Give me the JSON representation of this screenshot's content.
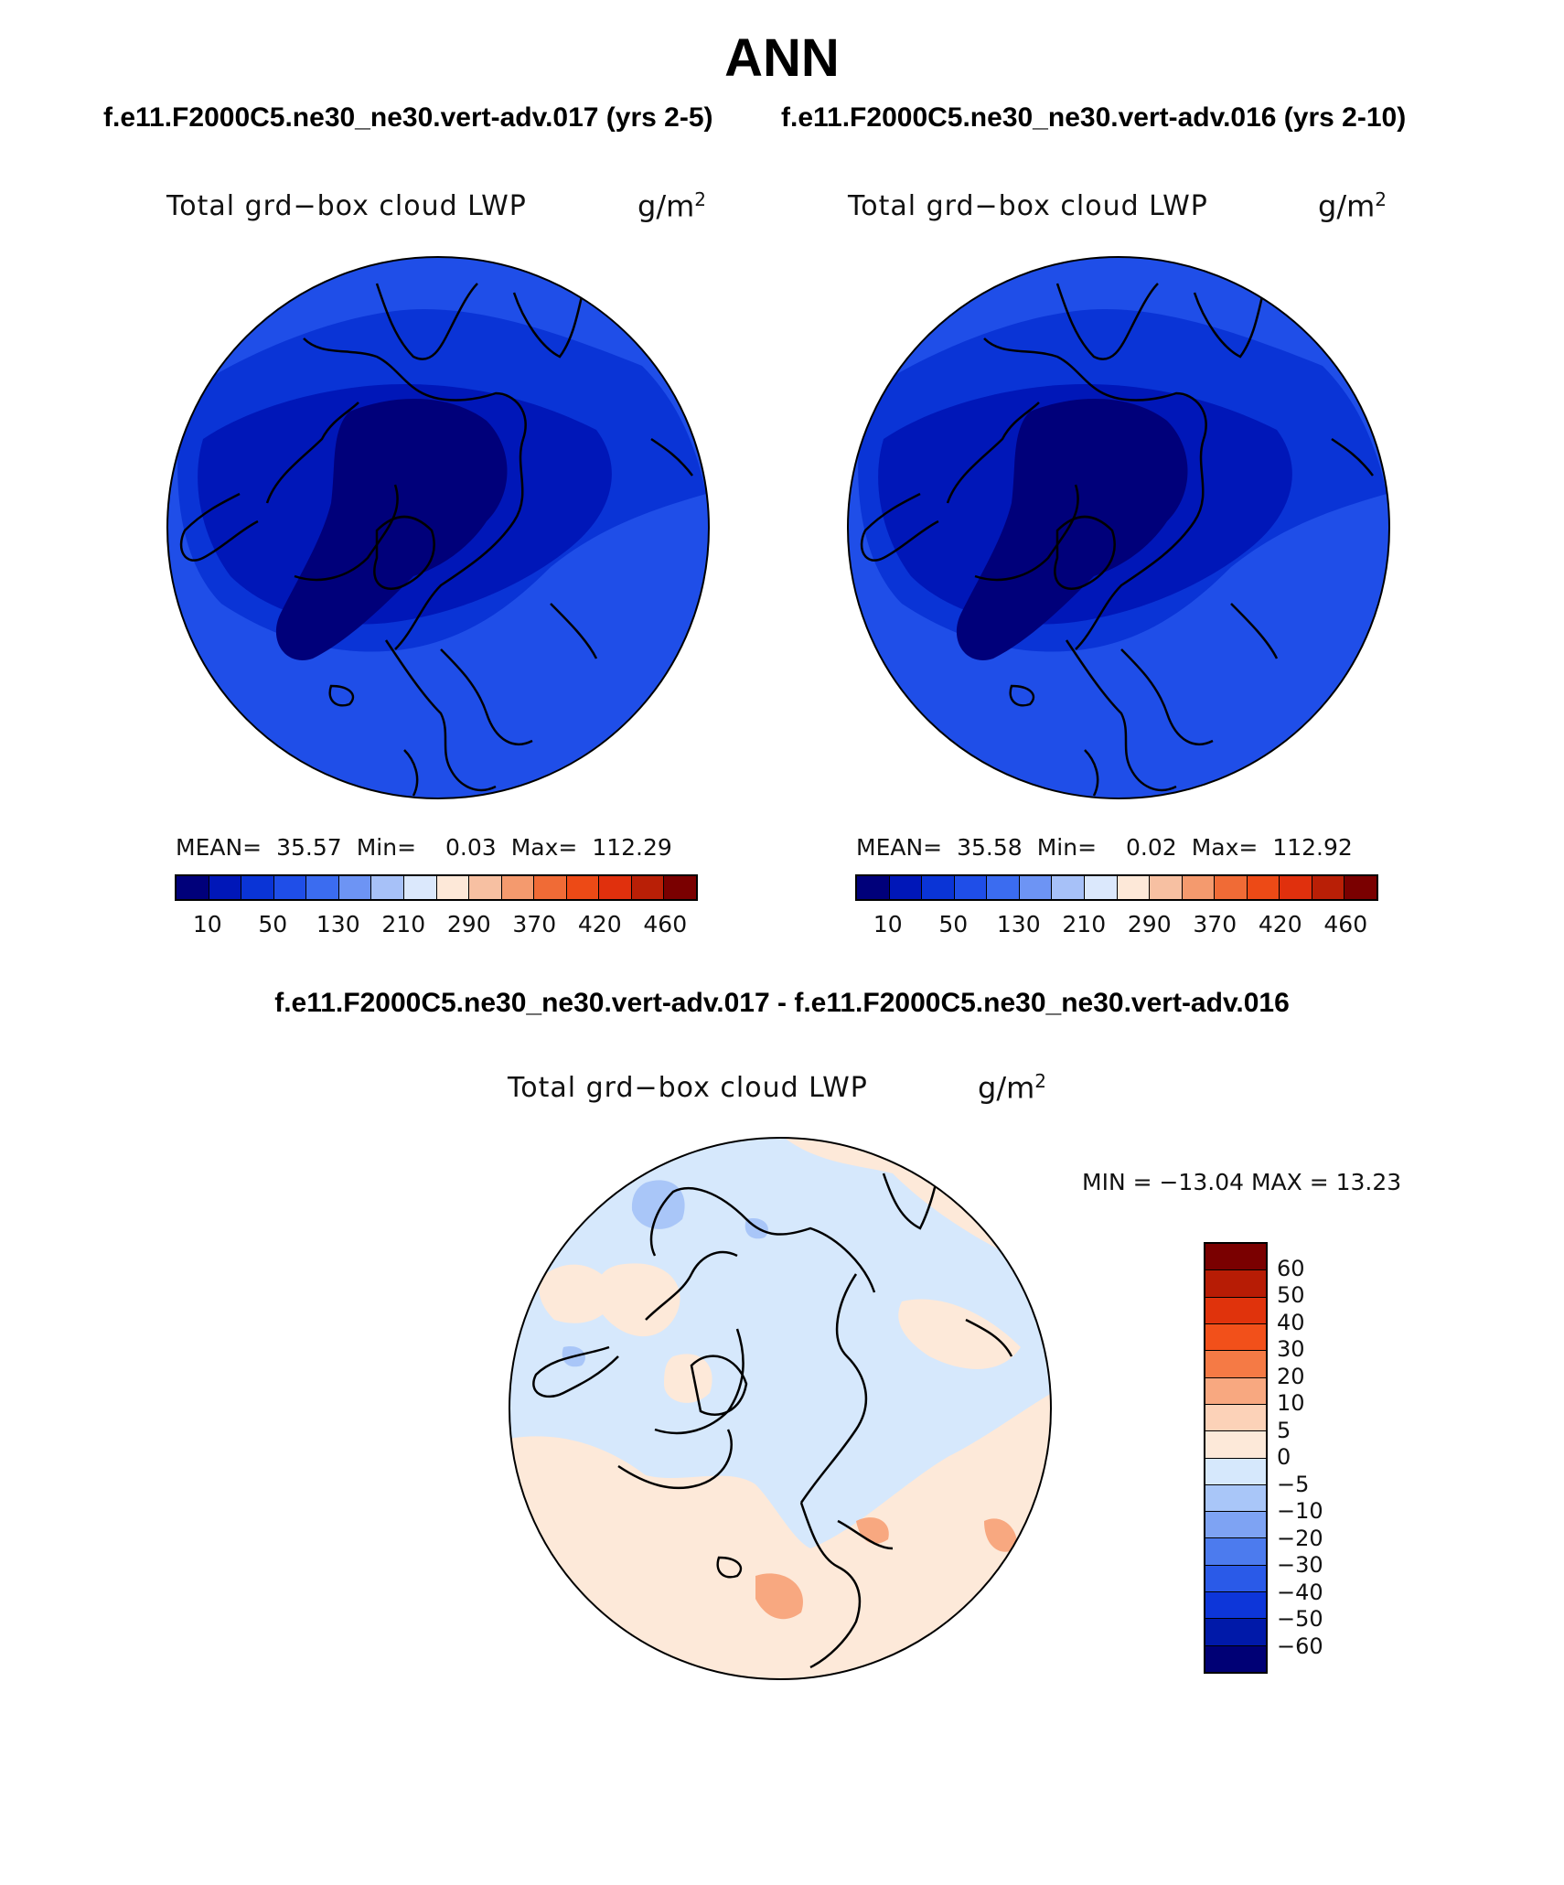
{
  "page": {
    "title": "ANN",
    "left_case_title": "f.e11.F2000C5.ne30_ne30.vert-adv.017 (yrs 2-5)",
    "right_case_title": "f.e11.F2000C5.ne30_ne30.vert-adv.016 (yrs 2-10)",
    "diff_title": "f.e11.F2000C5.ne30_ne30.vert-adv.017 - f.e11.F2000C5.ne30_ne30.vert-adv.016"
  },
  "panels": [
    {
      "variable": "Total grd−box cloud LWP",
      "units_base": "g/m",
      "units_exp": "2",
      "mean_label": "MEAN=",
      "mean": "35.57",
      "min_label": "Min=",
      "min": "0.03",
      "max_label": "Max=",
      "max": "112.29"
    },
    {
      "variable": "Total grd−box cloud LWP",
      "units_base": "g/m",
      "units_exp": "2",
      "mean_label": "MEAN=",
      "mean": "35.58",
      "min_label": "Min=",
      "min": "0.02",
      "max_label": "Max=",
      "max": "112.92"
    }
  ],
  "abs_colorbar": {
    "colors": [
      "#00007a",
      "#0017b8",
      "#0a34d6",
      "#1f4ee8",
      "#3b6cf0",
      "#6d94f4",
      "#a7c1f8",
      "#dbe8fc",
      "#fde8d8",
      "#f7c0a2",
      "#f49a6e",
      "#f06b36",
      "#ed4a16",
      "#e0300d",
      "#b91f06",
      "#7a0000"
    ],
    "tick_labels": [
      "10",
      "50",
      "130",
      "210",
      "290",
      "370",
      "420",
      "460"
    ]
  },
  "diff_panel": {
    "variable": "Total grd−box cloud LWP",
    "units_base": "g/m",
    "units_exp": "2",
    "min_max_text": "MIN = −13.04  MAX =   13.23"
  },
  "diff_colorbar": {
    "colors": [
      "#7a0000",
      "#b71c05",
      "#e0330c",
      "#f2501a",
      "#f57a45",
      "#f8a880",
      "#fcd2b8",
      "#fde9d9",
      "#d6e8fc",
      "#a9c6f8",
      "#7ea3f3",
      "#4c7bee",
      "#2a5ae8",
      "#0d36d9",
      "#0019a9",
      "#000075"
    ],
    "tick_labels": [
      "60",
      "50",
      "40",
      "30",
      "20",
      "10",
      "5",
      "0",
      "−5",
      "−10",
      "−20",
      "−30",
      "−40",
      "−50",
      "−60"
    ]
  },
  "map_colors": {
    "outer": "#1f4ee8",
    "band": "#0a34d6",
    "inner": "#0017b8",
    "core": "#00007a",
    "diff_base": "#d6e8fc",
    "diff_pos": "#fde9d9",
    "diff_pos2": "#f8a880",
    "diff_neg": "#a9c6f8"
  }
}
